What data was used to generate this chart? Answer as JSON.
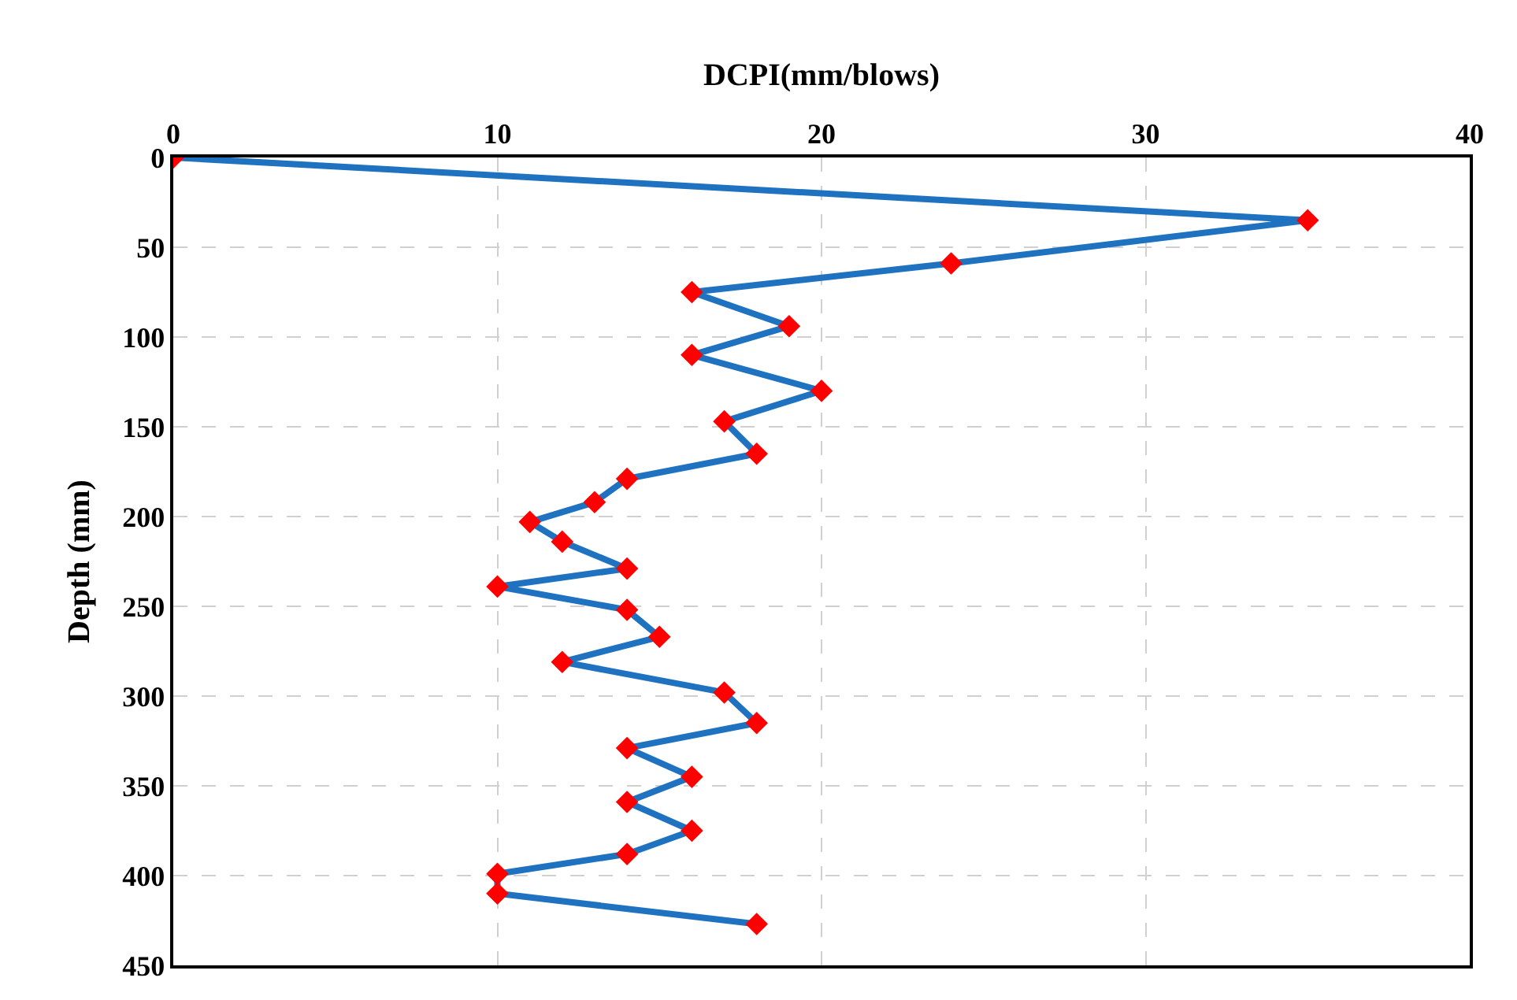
{
  "chart_data": {
    "type": "line",
    "xlabel": "DCPI(mm/blows)",
    "ylabel": "Depth (mm)",
    "x": [
      0,
      35,
      24,
      16,
      19,
      16,
      20,
      17,
      18,
      14,
      13,
      11,
      12,
      14,
      10,
      14,
      15,
      12,
      17,
      18,
      14,
      16,
      14,
      16,
      14,
      10,
      10,
      18
    ],
    "series": [
      {
        "color": "#1f72c0",
        "colors": [
          "#ff0000",
          "#ff0000",
          "#ff0000",
          "#ff0000",
          "#ff0000",
          "#ff0000",
          "#ff0000",
          "#ff0000",
          "#ff0000",
          "#ff0000",
          "#ff0000",
          "#ff0000",
          "#ff0000",
          "#ff0000",
          "#ff0000",
          "#ff0000",
          "#ff0000",
          "#ff0000",
          "#ff0000",
          "#ff0000",
          "#ff0000",
          "#ff0000",
          "#ff0000",
          "#ff0000",
          "#ff0000",
          "#ff0000",
          "#ff0000",
          "#ff0000"
        ],
        "values": [
          0,
          35,
          59,
          75,
          94,
          110,
          130,
          147,
          165,
          179,
          192,
          203,
          214,
          229,
          239,
          252,
          267,
          281,
          298,
          315,
          329,
          345,
          359,
          375,
          388,
          399,
          410,
          427
        ]
      }
    ],
    "marker": "diamond",
    "line_style": "solid",
    "xlim": [
      0,
      40
    ],
    "xticks": [
      0,
      10,
      20,
      30,
      40
    ],
    "ylim": [
      450,
      0
    ],
    "yticks": [
      0,
      50,
      100,
      150,
      200,
      250,
      300,
      350,
      400,
      450
    ],
    "grid": true
  }
}
